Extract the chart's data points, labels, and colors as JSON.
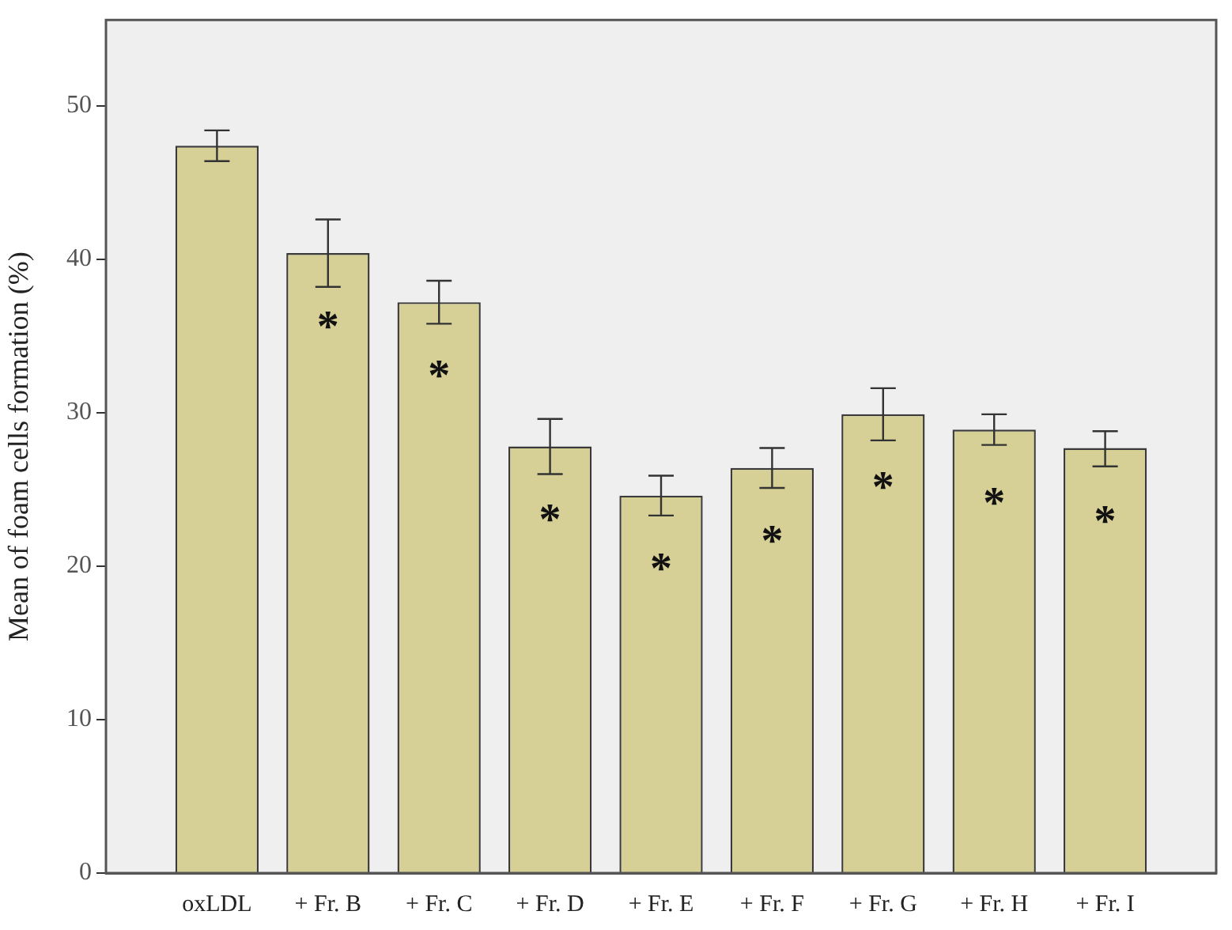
{
  "chart_data": {
    "type": "bar",
    "ylabel": "Mean of foam cells formation (%)",
    "categories": [
      "oxLDL",
      "+ Fr. B",
      "+ Fr. C",
      "+ Fr. D",
      "+ Fr. E",
      "+ Fr. F",
      "+ Fr. G",
      "+ Fr. H",
      "+ Fr. I"
    ],
    "values": [
      47.4,
      40.4,
      37.2,
      27.8,
      24.6,
      26.4,
      29.9,
      28.9,
      27.7
    ],
    "errors": [
      1.0,
      2.2,
      1.4,
      1.8,
      1.3,
      1.3,
      1.7,
      1.0,
      [
        26.5,
        28.8
      ]
    ],
    "color": "#d6cf96",
    "ylim": [
      0,
      55.6
    ],
    "yticks": [
      0,
      10,
      20,
      30,
      40,
      50
    ],
    "grid": false,
    "legend": false,
    "annotations": [
      {
        "text": "*",
        "x": "+ Fr. B",
        "y": 40.4
      },
      {
        "text": "*",
        "x": "+ Fr. C",
        "y": 37.2
      },
      {
        "text": "*",
        "x": "+ Fr. D",
        "y": 27.8
      },
      {
        "text": "*",
        "x": "+ Fr. E",
        "y": 24.6
      },
      {
        "text": "*",
        "x": "+ Fr. F",
        "y": 26.4
      },
      {
        "text": "*",
        "x": "+ Fr. G",
        "y": 29.9
      },
      {
        "text": "*",
        "x": "+ Fr. H",
        "y": 28.9
      },
      {
        "text": "*",
        "x": "+ Fr. I",
        "y": 27.7
      }
    ]
  }
}
